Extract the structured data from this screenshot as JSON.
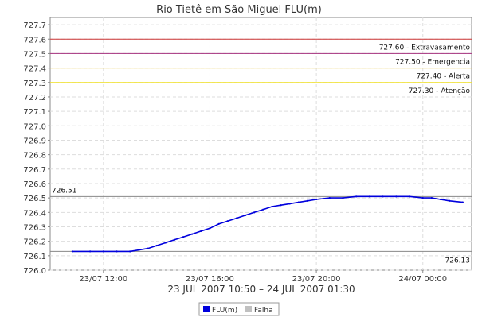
{
  "chart_data": {
    "type": "line",
    "title": "Rio Tietê em São Miguel FLU(m)",
    "xlabel": "23 JUL 2007 10:50 – 24 JUL 2007 01:30",
    "ylabel": "",
    "ylim": [
      726.0,
      727.75
    ],
    "y_ticks": [
      "727.7",
      "727.6",
      "727.5",
      "727.4",
      "727.3",
      "727.2",
      "727.1",
      "727.0",
      "726.9",
      "726.8",
      "726.7",
      "726.6",
      "726.5",
      "726.4",
      "726.3",
      "726.2",
      "726.1",
      "726.0"
    ],
    "x_ticks": [
      {
        "label": "23/07 12:00",
        "t": "2007-07-23T12:00"
      },
      {
        "label": "23/07 16:00",
        "t": "2007-07-23T16:00"
      },
      {
        "label": "23/07 20:00",
        "t": "2007-07-23T20:00"
      },
      {
        "label": "24/07 00:00",
        "t": "2007-07-24T00:00"
      }
    ],
    "xlim": [
      "2007-07-23T10:00",
      "2007-07-24T01:50"
    ],
    "grid": true,
    "thresholds": [
      {
        "value": 727.6,
        "label": "727.60 - Extravasamento",
        "color": "#cc3333"
      },
      {
        "value": 727.5,
        "label": "727.50 - Emergencia",
        "color": "#a5307e"
      },
      {
        "value": 727.4,
        "label": "727.40 - Alerta",
        "color": "#e6b800"
      },
      {
        "value": 727.3,
        "label": "727.30 - Atenção",
        "color": "#f0e020"
      }
    ],
    "reference_lines": [
      {
        "value": 726.51,
        "label": "726.51",
        "label_side": "left",
        "color": "#888888"
      },
      {
        "value": 726.13,
        "label": "726.13",
        "label_side": "right",
        "color": "#888888"
      }
    ],
    "series": [
      {
        "name": "FLU(m)",
        "color": "#0000dd",
        "x": [
          "2007-07-23T10:50",
          "2007-07-23T11:30",
          "2007-07-23T12:00",
          "2007-07-23T12:30",
          "2007-07-23T13:00",
          "2007-07-23T13:20",
          "2007-07-23T13:40",
          "2007-07-23T14:00",
          "2007-07-23T14:20",
          "2007-07-23T14:40",
          "2007-07-23T15:00",
          "2007-07-23T15:20",
          "2007-07-23T15:40",
          "2007-07-23T16:00",
          "2007-07-23T16:20",
          "2007-07-23T16:40",
          "2007-07-23T17:00",
          "2007-07-23T17:20",
          "2007-07-23T17:40",
          "2007-07-23T18:00",
          "2007-07-23T18:20",
          "2007-07-23T18:40",
          "2007-07-23T19:00",
          "2007-07-23T19:20",
          "2007-07-23T19:40",
          "2007-07-23T20:00",
          "2007-07-23T20:30",
          "2007-07-23T21:00",
          "2007-07-23T21:30",
          "2007-07-23T22:00",
          "2007-07-23T22:30",
          "2007-07-23T23:00",
          "2007-07-23T23:30",
          "2007-07-24T00:00",
          "2007-07-24T00:20",
          "2007-07-24T00:40",
          "2007-07-24T01:00",
          "2007-07-24T01:30"
        ],
        "values": [
          726.13,
          726.13,
          726.13,
          726.13,
          726.13,
          726.14,
          726.15,
          726.17,
          726.19,
          726.21,
          726.23,
          726.25,
          726.27,
          726.29,
          726.32,
          726.34,
          726.36,
          726.38,
          726.4,
          726.42,
          726.44,
          726.45,
          726.46,
          726.47,
          726.48,
          726.49,
          726.5,
          726.5,
          726.51,
          726.51,
          726.51,
          726.51,
          726.51,
          726.5,
          726.5,
          726.49,
          726.48,
          726.47
        ]
      },
      {
        "name": "Falha",
        "color": "#c0c0c0",
        "values": []
      }
    ],
    "legend_position": "bottom-center"
  }
}
